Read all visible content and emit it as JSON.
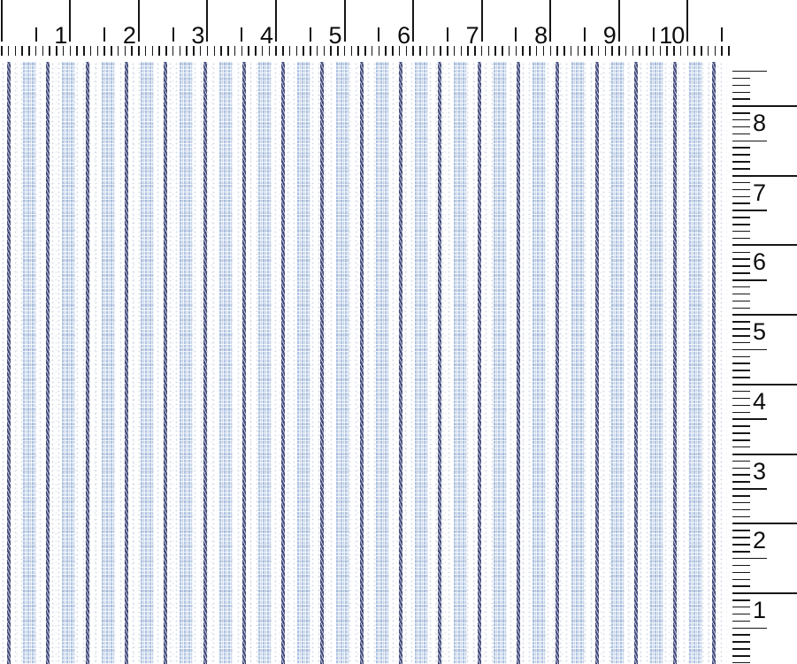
{
  "view": {
    "label": "Fabric swatch measurement view with inch rulers"
  },
  "horizontal_ruler": {
    "unit": "inches",
    "numbers": [
      "1",
      "2",
      "3",
      "4",
      "5",
      "6",
      "7",
      "8",
      "9",
      "10"
    ],
    "minor_ticks_per_inch": 10,
    "half_inch_ticks": true
  },
  "vertical_ruler": {
    "unit": "inches",
    "numbers": [
      "8",
      "7",
      "6",
      "5",
      "4",
      "3",
      "2",
      "1"
    ],
    "minor_ticks_per_inch": 10,
    "half_inch_ticks": true
  },
  "ruler_style": {
    "tick_color": "#161616",
    "number_color": "#0c0c0c",
    "background": "#ffffff"
  },
  "fabric": {
    "label": "white fabric with blue dotted ticking stripes",
    "dark_stripe_count": 19,
    "light_stripe_count": 18,
    "colors": {
      "ground": "#ffffff",
      "speckle": "#cdd5e4",
      "dark_stripe": "#3e4473",
      "dark_stripe_highlight": "#9aa4c7",
      "light_stripe": "#b3c7e3",
      "light_stripe_pale": "#eef2f9"
    }
  }
}
